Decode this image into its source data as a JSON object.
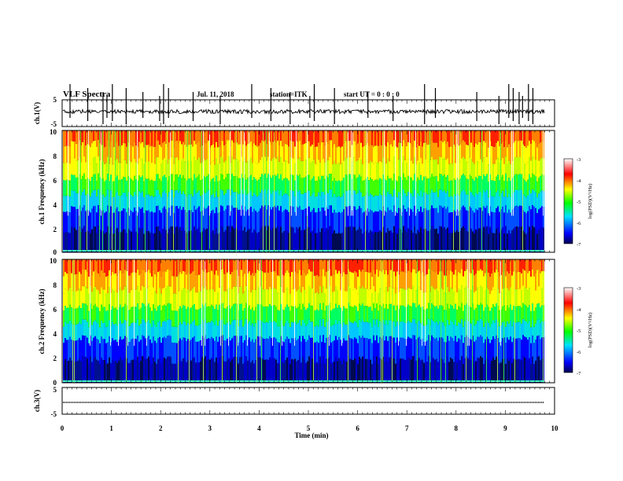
{
  "header": {
    "title": "VLF Spectra",
    "date": "Jul. 11, 2018",
    "station": "station=ITK",
    "start": "start UT = 0 : 0 : 0"
  },
  "chart_data": [
    {
      "type": "line",
      "name": "waveform-ch1",
      "ylabel": "ch.1(V)",
      "ylim": [
        -5,
        5
      ],
      "yticks": [
        "5",
        "-5"
      ],
      "xlim": [
        0,
        10
      ],
      "baseline": 0,
      "spike_times": [
        0.16,
        0.52,
        0.83,
        0.91,
        1.02,
        1.3,
        1.64,
        1.98,
        2.06,
        2.16,
        2.66,
        3.21,
        3.85,
        4.24,
        4.63,
        5.03,
        5.12,
        5.53,
        6.21,
        6.72,
        7.36,
        7.58,
        8.42,
        8.87,
        9.07,
        9.16,
        9.28,
        9.35,
        9.47,
        9.56
      ]
    },
    {
      "type": "heatmap",
      "name": "spectrogram-ch1",
      "ylabel": "ch.1 Frequency (kHz)",
      "ylim": [
        0,
        10
      ],
      "yticks": [
        "0",
        "2",
        "4",
        "6",
        "8",
        "10"
      ],
      "xlim": [
        0,
        10
      ],
      "colorbar": {
        "label": "log(PSD)(V²/Hz)",
        "range": [
          -7,
          -3
        ],
        "ticks": [
          "-3",
          "-4",
          "-5",
          "-6",
          "-7"
        ],
        "colors": [
          "#000060",
          "#0000ff",
          "#00e0ff",
          "#00ff00",
          "#ffff00",
          "#ff0000",
          "#ffffff"
        ]
      }
    },
    {
      "type": "heatmap",
      "name": "spectrogram-ch2",
      "ylabel": "ch.2 Frequency (kHz)",
      "ylim": [
        0,
        10
      ],
      "yticks": [
        "0",
        "2",
        "4",
        "6",
        "8",
        "10"
      ],
      "xlim": [
        0,
        10
      ],
      "colorbar": {
        "label": "log(PSD)(V²/Hz)",
        "range": [
          -7,
          -3
        ],
        "ticks": [
          "-3",
          "-4",
          "-5",
          "-6",
          "-7"
        ],
        "colors": [
          "#000060",
          "#0000ff",
          "#00e0ff",
          "#00ff00",
          "#ffff00",
          "#ff0000",
          "#ffffff"
        ]
      }
    },
    {
      "type": "line",
      "name": "waveform-ch3",
      "ylabel": "ch.3(V)",
      "ylim": [
        -5,
        5
      ],
      "yticks": [
        "5",
        "-5"
      ],
      "xlim": [
        0,
        10
      ],
      "baseline": 0,
      "xlabel": "Time (min)",
      "xticks": [
        "0",
        "1",
        "2",
        "3",
        "4",
        "5",
        "6",
        "7",
        "8",
        "9",
        "10"
      ]
    }
  ]
}
